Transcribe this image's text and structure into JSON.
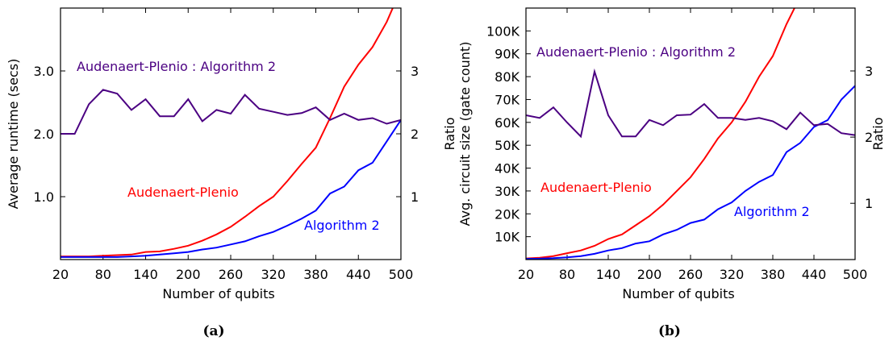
{
  "chart_data": [
    {
      "type": "line",
      "caption": "(a)",
      "xlabel": "Number of qubits",
      "ylabel": "Average runtime (secs)",
      "y2label": "Ratio",
      "annotations": [
        "Audenaert-Plenio : Algorithm 2",
        "Audenaert-Plenio",
        "Algorithm 2"
      ],
      "x": [
        20,
        40,
        60,
        80,
        100,
        120,
        140,
        160,
        180,
        200,
        220,
        240,
        260,
        280,
        300,
        320,
        340,
        360,
        380,
        400,
        420,
        440,
        460,
        480,
        500
      ],
      "xlim": [
        20,
        500
      ],
      "xticks": [
        20,
        80,
        140,
        200,
        260,
        320,
        380,
        440,
        500
      ],
      "ylim": [
        0,
        4
      ],
      "yticks": [
        {
          "value": 1,
          "label": "1.0"
        },
        {
          "value": 2,
          "label": "2.0"
        },
        {
          "value": 3,
          "label": "3.0"
        }
      ],
      "y2lim": [
        0,
        4
      ],
      "y2ticks": [
        1,
        2,
        3
      ],
      "series": [
        {
          "name": "Audenaert-Plenio",
          "color": "#ff0000",
          "values": [
            0.05,
            0.05,
            0.05,
            0.06,
            0.07,
            0.08,
            0.12,
            0.13,
            0.17,
            0.22,
            0.3,
            0.4,
            0.52,
            0.68,
            0.85,
            1.0,
            1.25,
            1.52,
            1.78,
            2.25,
            2.75,
            3.1,
            3.38,
            3.78,
            4.3
          ]
        },
        {
          "name": "Algorithm 2",
          "color": "#0000ff",
          "values": [
            0.04,
            0.04,
            0.04,
            0.04,
            0.04,
            0.05,
            0.06,
            0.08,
            0.1,
            0.12,
            0.16,
            0.19,
            0.24,
            0.29,
            0.37,
            0.44,
            0.54,
            0.65,
            0.78,
            1.05,
            1.16,
            1.42,
            1.54,
            1.88,
            2.22
          ]
        },
        {
          "name": "Audenaert-Plenio : Algorithm 2",
          "color": "#4b0082",
          "axis": "y2",
          "values": [
            2.0,
            2.0,
            2.47,
            2.7,
            2.64,
            2.38,
            2.55,
            2.28,
            2.28,
            2.55,
            2.2,
            2.38,
            2.32,
            2.62,
            2.4,
            2.35,
            2.3,
            2.33,
            2.42,
            2.22,
            2.32,
            2.22,
            2.25,
            2.16,
            2.22
          ]
        }
      ]
    },
    {
      "type": "line",
      "caption": "(b)",
      "xlabel": "Number of qubits",
      "ylabel": "Avg. circuit size (gate count)",
      "y2label": "Ratio",
      "annotations": [
        "Audenaert-Plenio : Algorithm 2",
        "Audenaert-Plenio",
        "Algorithm 2"
      ],
      "x": [
        20,
        40,
        60,
        80,
        100,
        120,
        140,
        160,
        180,
        200,
        220,
        240,
        260,
        280,
        300,
        320,
        340,
        360,
        380,
        400,
        420,
        440,
        460,
        480,
        500
      ],
      "xlim": [
        20,
        500
      ],
      "xticks": [
        20,
        80,
        140,
        200,
        260,
        320,
        380,
        440,
        500
      ],
      "ylim": [
        0,
        110000
      ],
      "yticks": [
        {
          "value": 10000,
          "label": "10K"
        },
        {
          "value": 20000,
          "label": "20K"
        },
        {
          "value": 30000,
          "label": "30K"
        },
        {
          "value": 40000,
          "label": "40K"
        },
        {
          "value": 50000,
          "label": "50K"
        },
        {
          "value": 60000,
          "label": "60K"
        },
        {
          "value": 70000,
          "label": "70K"
        },
        {
          "value": 80000,
          "label": "80K"
        },
        {
          "value": 90000,
          "label": "90K"
        },
        {
          "value": 100000,
          "label": "100K"
        }
      ],
      "y2lim": [
        0.15,
        3.95
      ],
      "y2ticks": [
        1,
        2,
        3
      ],
      "series": [
        {
          "name": "Audenaert-Plenio",
          "color": "#ff0000",
          "values": [
            500,
            800,
            1500,
            2800,
            4000,
            6000,
            9000,
            11000,
            15000,
            19000,
            24000,
            30000,
            36000,
            44000,
            53000,
            60000,
            69000,
            80000,
            89000,
            103000,
            115000,
            null,
            null,
            null,
            null
          ]
        },
        {
          "name": "Algorithm 2",
          "color": "#0000ff",
          "values": [
            300,
            400,
            600,
            1000,
            1500,
            2500,
            4000,
            5000,
            7000,
            8000,
            11000,
            13000,
            16000,
            17500,
            22000,
            25000,
            30000,
            34000,
            37000,
            47000,
            51000,
            58000,
            61000,
            70000,
            76000
          ]
        },
        {
          "name": "Audenaert-Plenio : Algorithm 2",
          "color": "#4b0082",
          "axis": "y2",
          "values": [
            2.33,
            2.29,
            2.45,
            2.22,
            2.01,
            2.99,
            2.33,
            2.01,
            2.01,
            2.26,
            2.18,
            2.33,
            2.34,
            2.5,
            2.29,
            2.29,
            2.26,
            2.29,
            2.24,
            2.12,
            2.37,
            2.18,
            2.2,
            2.06,
            2.03
          ]
        }
      ]
    }
  ]
}
